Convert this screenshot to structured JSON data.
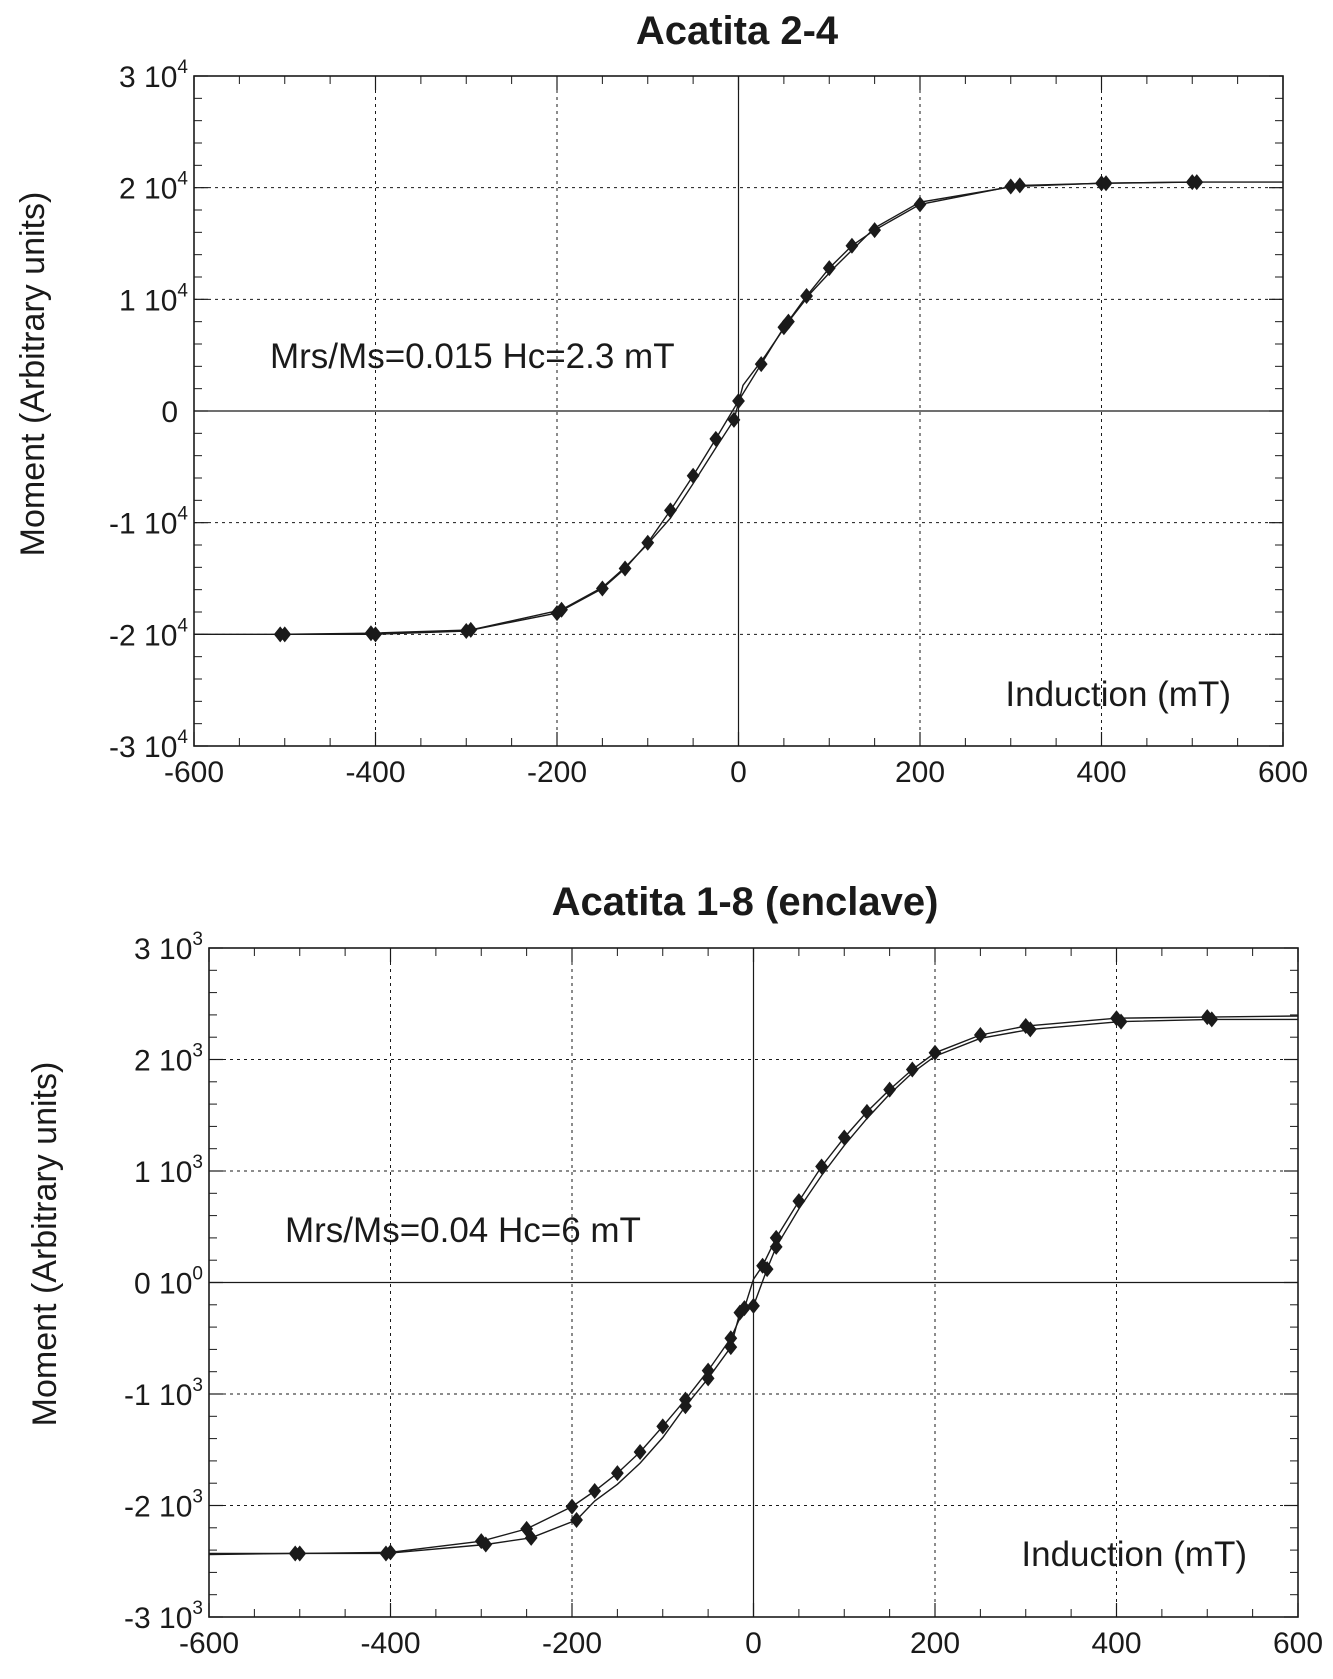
{
  "chart_data": [
    {
      "type": "line",
      "title": "Acatita 2-4",
      "xlabel": "Induction (mT)",
      "ylabel": "Moment (Arbitrary units)",
      "annotation": "Mrs/Ms=0.015 Hc=2.3 mT",
      "xlim": [
        -600,
        600
      ],
      "ylim": [
        -30000,
        30000
      ],
      "grid": true,
      "x_ticks": [
        "-600",
        "-400",
        "-200",
        "0",
        "200",
        "400",
        "600"
      ],
      "y_ticks": [
        {
          "value": 30000,
          "label": "3 10",
          "exp": "4"
        },
        {
          "value": 20000,
          "label": "2 10",
          "exp": "4"
        },
        {
          "value": 10000,
          "label": "1 10",
          "exp": "4"
        },
        {
          "value": 0,
          "label": "0",
          "exp": ""
        },
        {
          "value": -10000,
          "label": "-1 10",
          "exp": "4"
        },
        {
          "value": -20000,
          "label": "-2 10",
          "exp": "4"
        },
        {
          "value": -30000,
          "label": "-3 10",
          "exp": "4"
        }
      ],
      "series": [
        {
          "x": [
            500,
            400,
            300,
            200,
            150,
            125,
            100,
            75,
            50,
            25,
            0,
            -25,
            -50,
            -75,
            -100,
            -125,
            -150,
            -200,
            -300,
            -400,
            -500
          ],
          "y": [
            20500,
            20400,
            20100,
            18500,
            16200,
            14800,
            12800,
            10300,
            7500,
            4200,
            900,
            -2500,
            -5800,
            -8900,
            -11800,
            -14100,
            -15900,
            -18100,
            -19700,
            -20000,
            -20000
          ],
          "markers": [
            true,
            true,
            true,
            true,
            true,
            true,
            true,
            true,
            true,
            true,
            true,
            true,
            true,
            true,
            true,
            true,
            true,
            true,
            true,
            true,
            true
          ]
        },
        {
          "x": [
            -600,
            -505,
            -405,
            -295,
            -195,
            -150,
            -125,
            -100,
            -75,
            -50,
            -25,
            -5,
            5,
            30,
            55,
            80,
            105,
            125,
            150,
            200,
            310,
            405,
            505,
            600
          ],
          "y": [
            -20000,
            -20000,
            -19900,
            -19600,
            -17800,
            -15800,
            -14000,
            -11900,
            -9600,
            -6500,
            -3300,
            -800,
            2300,
            5000,
            8000,
            10600,
            12800,
            14400,
            16400,
            18700,
            20200,
            20400,
            20500,
            20500
          ],
          "markers": [
            false,
            true,
            true,
            true,
            true,
            false,
            false,
            false,
            false,
            false,
            false,
            true,
            false,
            false,
            true,
            false,
            false,
            false,
            false,
            false,
            true,
            true,
            true,
            false
          ]
        }
      ]
    },
    {
      "type": "line",
      "title": "Acatita 1-8 (enclave)",
      "xlabel": "Induction (mT)",
      "ylabel": "Moment (Arbitrary units)",
      "annotation": "Mrs/Ms=0.04 Hc=6 mT",
      "xlim": [
        -600,
        600
      ],
      "ylim": [
        -3000,
        3000
      ],
      "grid": true,
      "x_ticks": [
        "-600",
        "-400",
        "-200",
        "0",
        "200",
        "400",
        "600"
      ],
      "y_ticks": [
        {
          "value": 3000,
          "label": "3 10",
          "exp": "3"
        },
        {
          "value": 2000,
          "label": "2 10",
          "exp": "3"
        },
        {
          "value": 1000,
          "label": "1 10",
          "exp": "3"
        },
        {
          "value": 0,
          "label": "0 10",
          "exp": "0"
        },
        {
          "value": -1000,
          "label": "-1 10",
          "exp": "3"
        },
        {
          "value": -2000,
          "label": "-2 10",
          "exp": "3"
        },
        {
          "value": -3000,
          "label": "-3 10",
          "exp": "3"
        }
      ],
      "series": [
        {
          "x": [
            600,
            500,
            400,
            300,
            250,
            200,
            175,
            150,
            125,
            100,
            75,
            50,
            25,
            10,
            0,
            -10,
            -25,
            -50,
            -75,
            -100,
            -125,
            -150,
            -175,
            -200,
            -250,
            -300,
            -400,
            -500,
            -600
          ],
          "y": [
            2390,
            2380,
            2370,
            2300,
            2220,
            2060,
            1910,
            1730,
            1530,
            1300,
            1040,
            730,
            400,
            150,
            30,
            -230,
            -500,
            -790,
            -1050,
            -1290,
            -1520,
            -1710,
            -1870,
            -2010,
            -2210,
            -2320,
            -2420,
            -2430,
            -2430
          ],
          "markers": [
            false,
            true,
            true,
            true,
            true,
            true,
            true,
            true,
            true,
            true,
            true,
            true,
            true,
            true,
            false,
            true,
            true,
            true,
            true,
            true,
            true,
            true,
            true,
            true,
            true,
            true,
            true,
            true,
            false
          ]
        },
        {
          "x": [
            -600,
            -505,
            -405,
            -295,
            -245,
            -195,
            -175,
            -150,
            -125,
            -100,
            -75,
            -50,
            -25,
            -15,
            0,
            15,
            25,
            50,
            75,
            100,
            125,
            150,
            175,
            200,
            250,
            305,
            405,
            505,
            600
          ],
          "y": [
            -2440,
            -2430,
            -2430,
            -2350,
            -2290,
            -2130,
            -1960,
            -1810,
            -1620,
            -1390,
            -1110,
            -860,
            -580,
            -270,
            -210,
            120,
            320,
            660,
            960,
            1230,
            1470,
            1690,
            1880,
            2030,
            2190,
            2270,
            2340,
            2360,
            2360
          ],
          "markers": [
            false,
            true,
            true,
            true,
            true,
            true,
            false,
            false,
            false,
            false,
            true,
            true,
            true,
            true,
            true,
            true,
            true,
            false,
            false,
            false,
            false,
            false,
            false,
            false,
            false,
            true,
            true,
            true,
            false
          ]
        }
      ]
    }
  ]
}
